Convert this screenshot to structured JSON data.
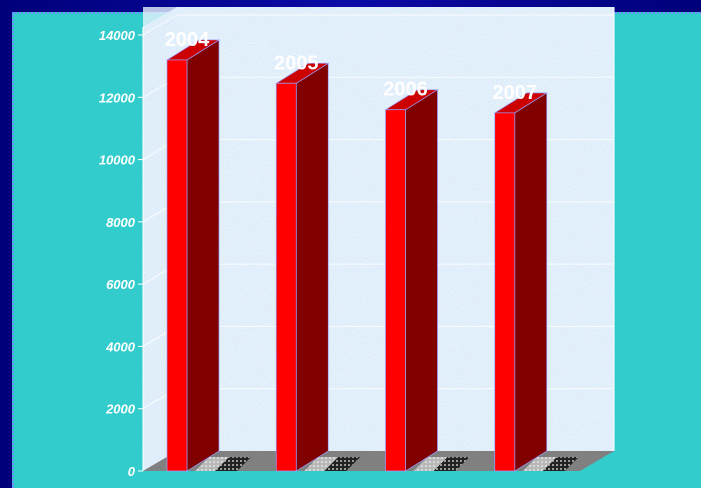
{
  "chart_data": {
    "type": "bar",
    "categories": [
      "2004",
      "2005",
      "2006",
      "2007"
    ],
    "values": [
      13200,
      12450,
      11600,
      11500
    ],
    "data_labels": [
      "2004",
      "2005",
      "2006",
      "2007"
    ],
    "yticks": [
      "0",
      "2000",
      "4000",
      "6000",
      "8000",
      "10000",
      "12000",
      "14000"
    ],
    "ylim": [
      0,
      14000
    ],
    "grid": true,
    "three_d": true,
    "colors": {
      "bar_front": "#ff0000",
      "bar_side": "#800000",
      "bar_top": "#cc0000",
      "background": "#33cccc",
      "floor": "#808080",
      "wall": "#c8dcf4",
      "gridline": "#ffffff",
      "slide_border": "#0a0a8c"
    }
  }
}
